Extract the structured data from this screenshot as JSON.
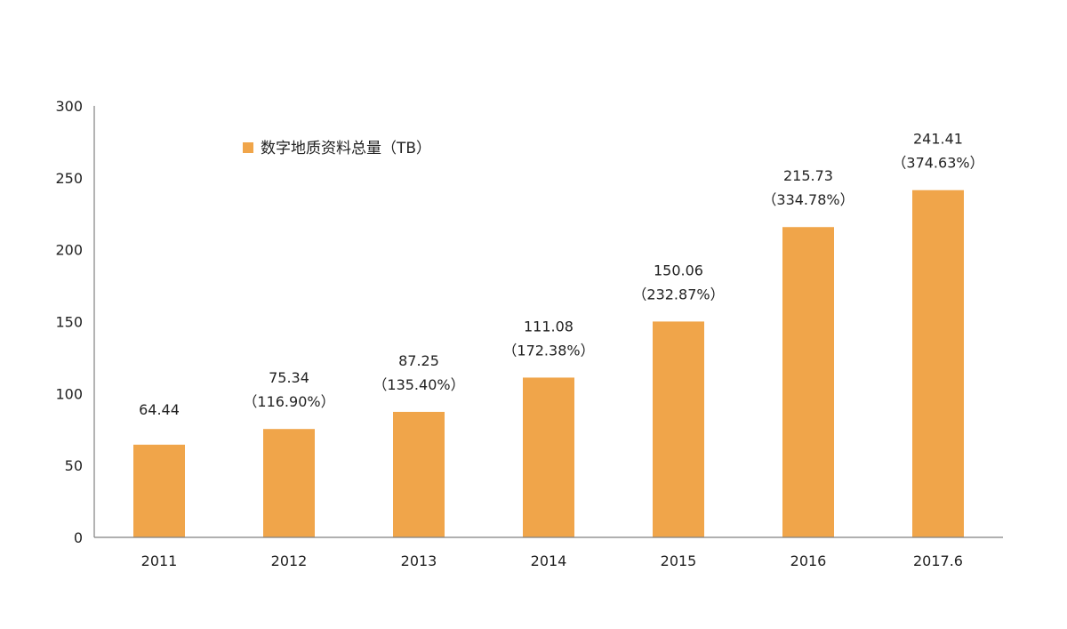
{
  "chart_data": {
    "type": "bar",
    "title": "",
    "xlabel": "",
    "ylabel": "",
    "categories": [
      "2011",
      "2012",
      "2013",
      "2014",
      "2015",
      "2016",
      "2017.6"
    ],
    "series": [
      {
        "name": "数字地质资料总量（TB）",
        "values": [
          64.44,
          75.34,
          87.25,
          111.08,
          150.06,
          215.73,
          241.41
        ],
        "value_labels": [
          "64.44",
          "75.34",
          "87.25",
          "111.08",
          "150.06",
          "215.73",
          "241.41"
        ],
        "growth_labels": [
          "",
          "（116.90%）",
          "（135.40%）",
          "（172.38%）",
          "（232.87%）",
          "（334.78%）",
          "（374.63%）"
        ]
      }
    ],
    "ylim": [
      0,
      300
    ],
    "yticks": [
      0,
      50,
      100,
      150,
      200,
      250,
      300
    ],
    "grid": false,
    "legend_position": "top-left",
    "colors": {
      "bar": "#F0A54A",
      "axis": "#808080",
      "text": "#222222"
    }
  }
}
